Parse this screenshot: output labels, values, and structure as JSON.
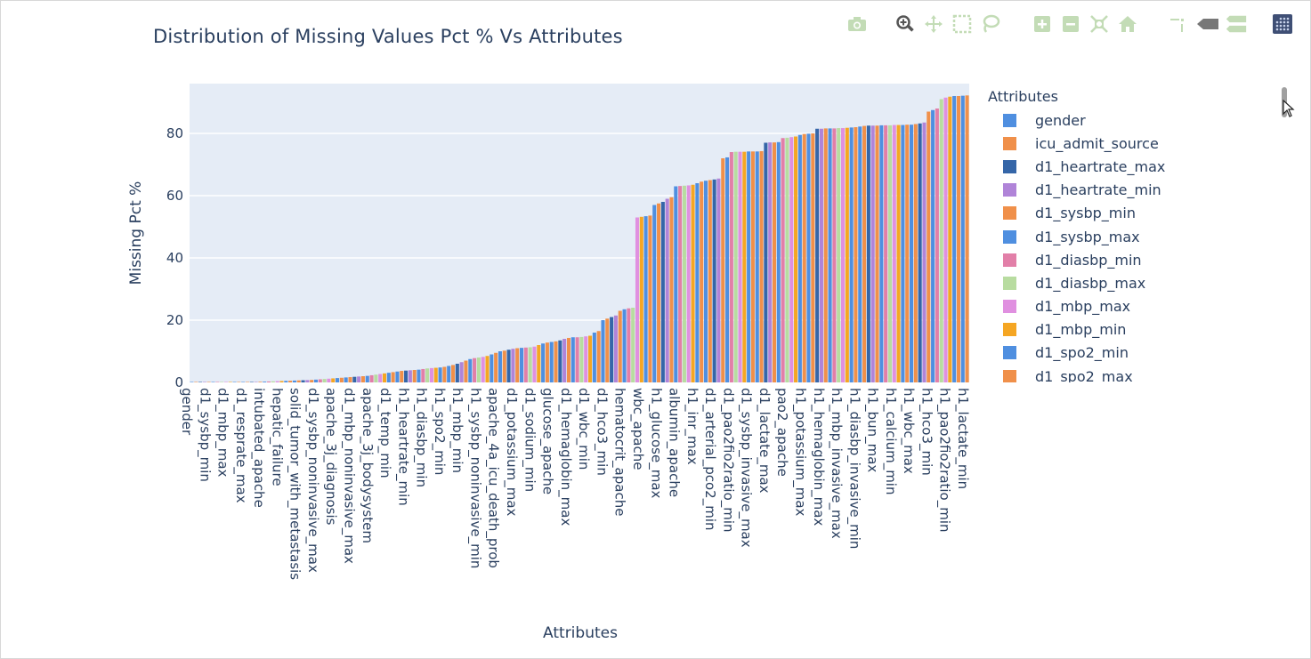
{
  "chart_data": {
    "type": "bar",
    "title": "Distribution of Missing Values Pct % Vs Attributes",
    "xlabel": "Attributes",
    "ylabel": "Missing Pct %",
    "ylim": [
      0,
      96
    ],
    "yticks": [
      0,
      20,
      40,
      60,
      80
    ],
    "grid": true,
    "legend_title": "Attributes",
    "legend_placement": "right",
    "colors": [
      "#4f8fe0",
      "#f0904a",
      "#3566a8",
      "#b084d8",
      "#f0904a",
      "#4f8fe0",
      "#e27fa8",
      "#b8dca0",
      "#e090e0",
      "#f5a623",
      "#4f8fe0",
      "#f0904a"
    ],
    "legend_entries": [
      "gender",
      "icu_admit_source",
      "d1_heartrate_max",
      "d1_heartrate_min",
      "d1_sysbp_min",
      "d1_sysbp_max",
      "d1_diasbp_min",
      "d1_diasbp_max",
      "d1_mbp_max",
      "d1_mbp_min",
      "d1_spo2_min",
      "d1_spo2_max"
    ],
    "x_tick_labels": [
      "gender",
      "d1_sysbp_min",
      "d1_mbp_max",
      "d1_resprate_max",
      "intubated_apache",
      "hepatic_failure",
      "solid_tumor_with_metastasis",
      "d1_sysbp_noninvasive_max",
      "apache_3j_diagnosis",
      "d1_mbp_noninvasive_max",
      "apache_3j_bodysystem",
      "d1_temp_min",
      "h1_heartrate_min",
      "h1_diasbp_min",
      "h1_spo2_min",
      "h1_mbp_min",
      "h1_sysbp_noninvasive_min",
      "apache_4a_icu_death_prob",
      "d1_potassium_max",
      "d1_sodium_min",
      "glucose_apache",
      "d1_hemaglobin_max",
      "d1_wbc_min",
      "d1_hco3_min",
      "hematocrit_apache",
      "wbc_apache",
      "h1_glucose_max",
      "albumin_apache",
      "h1_inr_max",
      "d1_arterial_pco2_min",
      "d1_pao2fio2ratio_min",
      "d1_sysbp_invasive_max",
      "d1_lactate_max",
      "pao2_apache",
      "h1_potassium_max",
      "h1_hemaglobin_max",
      "h1_mbp_invasive_max",
      "h1_diasbp_invasive_min",
      "h1_bun_max",
      "h1_calcium_min",
      "h1_wbc_max",
      "h1_hco3_min",
      "h1_pao2fio2ratio_min",
      "h1_lactate_min"
    ],
    "values": [
      0,
      0,
      0,
      0,
      0,
      0,
      0,
      0,
      0,
      0,
      0,
      0,
      0,
      0,
      0,
      0,
      0.2,
      0.25,
      0.3,
      0.35,
      0.4,
      0.45,
      0.5,
      0.55,
      0.6,
      0.65,
      0.7,
      0.75,
      0.8,
      0.9,
      1.0,
      1.1,
      1.2,
      1.3,
      1.4,
      1.5,
      1.6,
      1.7,
      1.8,
      1.9,
      2.0,
      2.1,
      2.3,
      2.5,
      2.7,
      2.9,
      3.1,
      3.3,
      3.5,
      3.7,
      3.8,
      3.9,
      4.0,
      4.1,
      4.3,
      4.5,
      4.6,
      4.7,
      4.8,
      5.0,
      5.3,
      5.6,
      6.0,
      6.5,
      7.0,
      7.5,
      7.8,
      8.0,
      8.2,
      8.5,
      9.0,
      9.5,
      10.0,
      10.2,
      10.5,
      10.8,
      11.0,
      11.1,
      11.2,
      11.3,
      11.5,
      12.0,
      12.5,
      12.8,
      13.0,
      13.2,
      13.5,
      14.0,
      14.3,
      14.5,
      14.5,
      14.6,
      14.8,
      15.0,
      16.0,
      16.5,
      20.0,
      20.5,
      21.0,
      21.5,
      23.0,
      23.5,
      23.8,
      24.0,
      53.0,
      53.2,
      53.4,
      53.6,
      57.0,
      57.5,
      58.0,
      59.0,
      59.5,
      63.0,
      63.1,
      63.2,
      63.3,
      63.5,
      64.0,
      64.5,
      64.8,
      65.0,
      65.2,
      65.5,
      72.0,
      72.3,
      74.0,
      74.1,
      74.1,
      74.1,
      74.2,
      74.2,
      74.2,
      74.3,
      77.0,
      77.1,
      77.1,
      77.2,
      78.5,
      78.6,
      78.8,
      79.0,
      79.5,
      79.8,
      79.9,
      80.0,
      81.5,
      81.5,
      81.6,
      81.6,
      81.6,
      81.7,
      81.7,
      81.8,
      81.9,
      82.0,
      82.2,
      82.4,
      82.5,
      82.5,
      82.5,
      82.6,
      82.6,
      82.6,
      82.7,
      82.7,
      82.7,
      82.8,
      82.8,
      83.0,
      83.2,
      83.5,
      87.0,
      87.5,
      88.0,
      91.0,
      91.5,
      91.8,
      92.0,
      92.0,
      92.1,
      92.2
    ]
  }
}
